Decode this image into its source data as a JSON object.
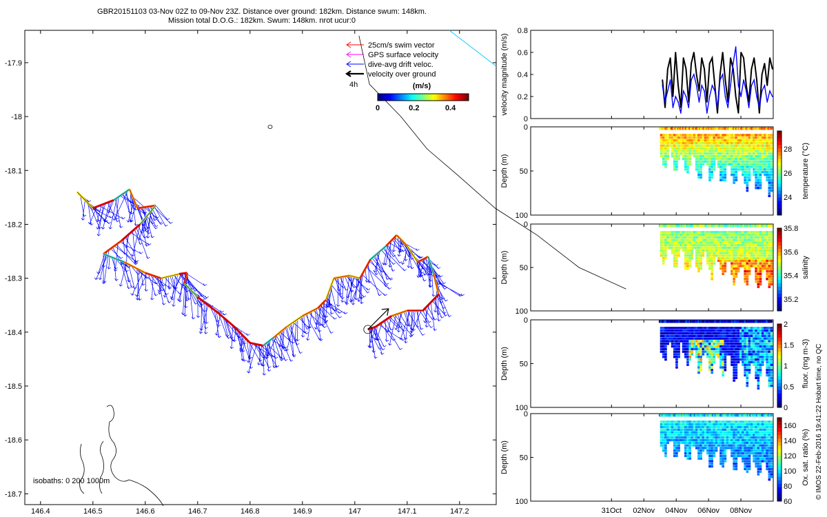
{
  "title": {
    "line1": "GBR20151103 03-Nov 02Z to 09-Nov 23Z. Distance over ground: 182km. Distance swum: 148km.",
    "line2": "Mission total D.O.G.: 182km. Swum: 148km. nrot ucur:0"
  },
  "footer_note": "© IMOS 22-Feb-2016 19:41:22 Hobart time, no QC",
  "chart_data": [
    {
      "type": "scatter",
      "name": "map",
      "xlim": [
        146.37,
        147.27
      ],
      "ylim": [
        -18.72,
        -17.84
      ],
      "xticks": [
        146.4,
        146.5,
        146.6,
        146.7,
        146.8,
        146.9,
        147,
        147.1,
        147.2
      ],
      "xtick_labels": [
        "146.4",
        "146.5",
        "146.6",
        "146.7",
        "146.8",
        "146.9",
        "147",
        "147.1",
        "147.2"
      ],
      "yticks": [
        -17.9,
        -18,
        -18.1,
        -18.2,
        -18.3,
        -18.4,
        -18.5,
        -18.6,
        -18.7
      ],
      "ytick_labels": [
        "-17.9",
        "-18",
        "-18.1",
        "-18.2",
        "-18.3",
        "-18.4",
        "-18.5",
        "-18.6",
        "-18.7"
      ],
      "legend": {
        "placement": "top-right",
        "entries": [
          {
            "label": "25cm/s swim vector",
            "color": "#ff0000"
          },
          {
            "label": "GPS surface velocity",
            "color": "#ff00ff"
          },
          {
            "label": "dive-avg drift veloc.",
            "color": "#0000ff"
          },
          {
            "label": "velocity over ground",
            "color": "#000000"
          }
        ],
        "time_label": "4h"
      },
      "colorbar": {
        "label": "(m/s)",
        "tick_labels": [
          "0",
          "0.2",
          "0.4"
        ],
        "range": [
          0,
          0.5
        ]
      },
      "isobath_label": "isobaths: 0   200   1000m",
      "track": [
        {
          "lon": 146.47,
          "lat": -18.14,
          "v": 0.3
        },
        {
          "lon": 146.5,
          "lat": -18.17,
          "v": 0.45
        },
        {
          "lon": 146.54,
          "lat": -18.155,
          "v": 0.2
        },
        {
          "lon": 146.57,
          "lat": -18.135,
          "v": 0.35
        },
        {
          "lon": 146.585,
          "lat": -18.17,
          "v": 0.4
        },
        {
          "lon": 146.62,
          "lat": -18.165,
          "v": 0.25
        },
        {
          "lon": 146.59,
          "lat": -18.2,
          "v": 0.45
        },
        {
          "lon": 146.555,
          "lat": -18.23,
          "v": 0.4
        },
        {
          "lon": 146.52,
          "lat": -18.255,
          "v": 0.2
        },
        {
          "lon": 146.56,
          "lat": -18.27,
          "v": 0.35
        },
        {
          "lon": 146.6,
          "lat": -18.29,
          "v": 0.4
        },
        {
          "lon": 146.63,
          "lat": -18.3,
          "v": 0.3
        },
        {
          "lon": 146.665,
          "lat": -18.292,
          "v": 0.45
        },
        {
          "lon": 146.68,
          "lat": -18.29,
          "v": 0.4
        },
        {
          "lon": 146.675,
          "lat": -18.31,
          "v": 0.25
        },
        {
          "lon": 146.7,
          "lat": -18.335,
          "v": 0.45
        },
        {
          "lon": 146.74,
          "lat": -18.365,
          "v": 0.45
        },
        {
          "lon": 146.77,
          "lat": -18.39,
          "v": 0.45
        },
        {
          "lon": 146.8,
          "lat": -18.42,
          "v": 0.45
        },
        {
          "lon": 146.825,
          "lat": -18.425,
          "v": 0.2
        },
        {
          "lon": 146.845,
          "lat": -18.41,
          "v": 0.35
        },
        {
          "lon": 146.87,
          "lat": -18.39,
          "v": 0.3
        },
        {
          "lon": 146.9,
          "lat": -18.37,
          "v": 0.35
        },
        {
          "lon": 146.93,
          "lat": -18.355,
          "v": 0.4
        },
        {
          "lon": 146.945,
          "lat": -18.34,
          "v": 0.3
        },
        {
          "lon": 146.96,
          "lat": -18.3,
          "v": 0.35
        },
        {
          "lon": 146.99,
          "lat": -18.295,
          "v": 0.3
        },
        {
          "lon": 147.01,
          "lat": -18.3,
          "v": 0.4
        },
        {
          "lon": 147.03,
          "lat": -18.265,
          "v": 0.2
        },
        {
          "lon": 147.06,
          "lat": -18.24,
          "v": 0.4
        },
        {
          "lon": 147.08,
          "lat": -18.22,
          "v": 0.35
        },
        {
          "lon": 147.1,
          "lat": -18.24,
          "v": 0.3
        },
        {
          "lon": 147.12,
          "lat": -18.27,
          "v": 0.4
        },
        {
          "lon": 147.14,
          "lat": -18.26,
          "v": 0.2
        },
        {
          "lon": 147.15,
          "lat": -18.29,
          "v": 0.35
        },
        {
          "lon": 147.16,
          "lat": -18.33,
          "v": 0.45
        },
        {
          "lon": 147.13,
          "lat": -18.36,
          "v": 0.4
        },
        {
          "lon": 147.1,
          "lat": -18.36,
          "v": 0.35
        },
        {
          "lon": 147.07,
          "lat": -18.37,
          "v": 0.45
        },
        {
          "lon": 147.04,
          "lat": -18.39,
          "v": 0.45
        },
        {
          "lon": 147.025,
          "lat": -18.395,
          "v": 0.45
        }
      ]
    },
    {
      "type": "line",
      "name": "velocity",
      "ylabel": "velocity magnitude (m/s)",
      "ylim": [
        0,
        0.8
      ],
      "yticks": [
        0,
        0.2,
        0.4,
        0.6,
        0.8
      ],
      "ytick_labels": [
        "0",
        "0.2",
        "0.4",
        "0.6",
        "0.8"
      ],
      "x": [
        "02Nov 20h",
        "03Nov 00h",
        "03Nov 04h",
        "03Nov 08h",
        "03Nov 12h",
        "03Nov 16h",
        "03Nov 20h",
        "04Nov 00h",
        "04Nov 04h",
        "04Nov 08h",
        "04Nov 12h",
        "04Nov 16h",
        "04Nov 20h",
        "05Nov 00h",
        "05Nov 04h",
        "05Nov 08h",
        "05Nov 12h",
        "05Nov 16h",
        "05Nov 20h",
        "06Nov 00h",
        "06Nov 04h",
        "06Nov 08h",
        "06Nov 12h",
        "06Nov 16h",
        "06Nov 20h",
        "07Nov 00h",
        "07Nov 04h",
        "07Nov 08h",
        "07Nov 12h",
        "07Nov 16h",
        "07Nov 20h",
        "08Nov 00h",
        "08Nov 04h",
        "08Nov 08h",
        "08Nov 12h",
        "08Nov 16h",
        "08Nov 20h",
        "09Nov 00h",
        "09Nov 04h",
        "09Nov 08h",
        "09Nov 12h",
        "09Nov 16h",
        "09Nov 20h"
      ],
      "series": [
        {
          "color": "#000000",
          "values": [
            0.35,
            0.1,
            0.45,
            0.55,
            0.2,
            0.6,
            0.3,
            0.1,
            0.55,
            0.45,
            0.15,
            0.5,
            0.6,
            0.4,
            0.25,
            0.55,
            0.45,
            0.15,
            0.5,
            0.55,
            0.3,
            0.05,
            0.4,
            0.6,
            0.35,
            0.15,
            0.55,
            0.45,
            0.2,
            0.05,
            0.6,
            0.55,
            0.3,
            0.15,
            0.45,
            0.55,
            0.35,
            0.05,
            0.4,
            0.5,
            0.3,
            0.55,
            0.45
          ]
        },
        {
          "color": "#0000ff",
          "values": [
            0.3,
            0.15,
            0.25,
            0.35,
            0.1,
            0.2,
            0.15,
            0.05,
            0.25,
            0.2,
            0.1,
            0.35,
            0.4,
            0.3,
            0.15,
            0.3,
            0.25,
            0.05,
            0.2,
            0.3,
            0.25,
            0.1,
            0.35,
            0.4,
            0.2,
            0.1,
            0.3,
            0.5,
            0.65,
            0.3,
            0.2,
            0.35,
            0.25,
            0.1,
            0.3,
            0.35,
            0.2,
            0.1,
            0.25,
            0.3,
            0.15,
            0.25,
            0.2
          ]
        }
      ]
    },
    {
      "type": "heatmap",
      "name": "temperature",
      "ylabel": "Depth (m)",
      "colorbar_label": "temperature (°C)",
      "clim": [
        22.5,
        29.5
      ],
      "colorbar_ticks": [
        24,
        26,
        28
      ],
      "colorbar_tick_labels": [
        "24",
        "26",
        "28"
      ],
      "ylim": [
        0,
        100
      ],
      "yticks": [
        0,
        50,
        100
      ],
      "ytick_labels": [
        "0",
        "50",
        "100"
      ],
      "surface": 27.5,
      "deep": 23.5
    },
    {
      "type": "heatmap",
      "name": "salinity",
      "ylabel": "Depth (m)",
      "colorbar_label": "salinity",
      "clim": [
        35.1,
        35.8
      ],
      "colorbar_ticks": [
        35.2,
        35.4,
        35.6,
        35.8
      ],
      "colorbar_tick_labels": [
        "35.2",
        "35.4",
        "35.6",
        "35.8"
      ],
      "ylim": [
        0,
        100
      ],
      "yticks": [
        0,
        50,
        100
      ],
      "ytick_labels": [
        "0",
        "50",
        "100"
      ],
      "surface": 35.45,
      "deep": 35.6
    },
    {
      "type": "heatmap",
      "name": "fluorescence",
      "ylabel": "Depth (m)",
      "colorbar_label": "fluor. (mg m-3)",
      "clim": [
        0,
        2
      ],
      "colorbar_ticks": [
        0,
        0.5,
        1,
        1.5,
        2
      ],
      "colorbar_tick_labels": [
        "0",
        "0.5",
        "1",
        "1.5",
        "2"
      ],
      "ylim": [
        0,
        100
      ],
      "yticks": [
        0,
        50,
        100
      ],
      "ytick_labels": [
        "0",
        "50",
        "100"
      ],
      "surface": 0.2,
      "deep": 1.0
    },
    {
      "type": "heatmap",
      "name": "oxygen",
      "ylabel": "Depth (m)",
      "colorbar_label": "Ox. sat. ratio (%)",
      "clim": [
        60,
        170
      ],
      "colorbar_ticks": [
        60,
        80,
        100,
        120,
        140,
        160
      ],
      "colorbar_tick_labels": [
        "60",
        "80",
        "100",
        "120",
        "140",
        "160"
      ],
      "ylim": [
        0,
        100
      ],
      "yticks": [
        0,
        50,
        100
      ],
      "ytick_labels": [
        "0",
        "50",
        "100"
      ],
      "surface": 100,
      "deep": 80
    }
  ],
  "time_axis": {
    "xlim": [
      "26Oct",
      "10Nov"
    ],
    "ticks": [
      "31Oct",
      "02Nov",
      "04Nov",
      "06Nov",
      "08Nov"
    ],
    "data_start": "03Nov",
    "data_end": "09Nov"
  }
}
